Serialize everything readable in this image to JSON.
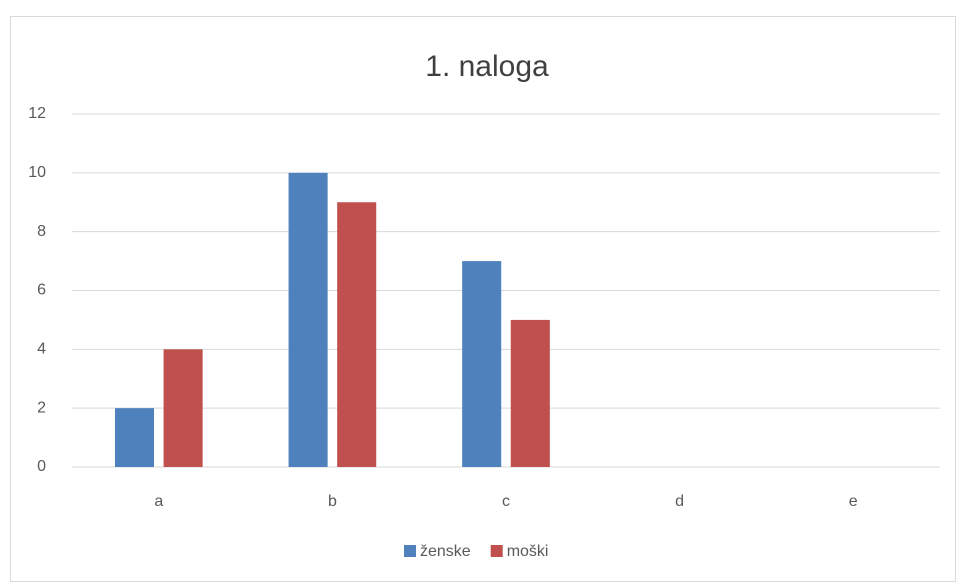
{
  "chart_data": {
    "type": "bar",
    "title": "1. naloga",
    "categories": [
      "a",
      "b",
      "c",
      "d",
      "e"
    ],
    "series": [
      {
        "name": "ženske",
        "color": "#4f81bd",
        "values": [
          2,
          10,
          7,
          0,
          0
        ]
      },
      {
        "name": "moški",
        "color": "#c0504d",
        "values": [
          4,
          9,
          5,
          0,
          0
        ]
      }
    ],
    "ylim": [
      0,
      12
    ],
    "yticks": [
      0,
      2,
      4,
      6,
      8,
      10,
      12
    ],
    "grid": true,
    "legend": "bottom"
  }
}
